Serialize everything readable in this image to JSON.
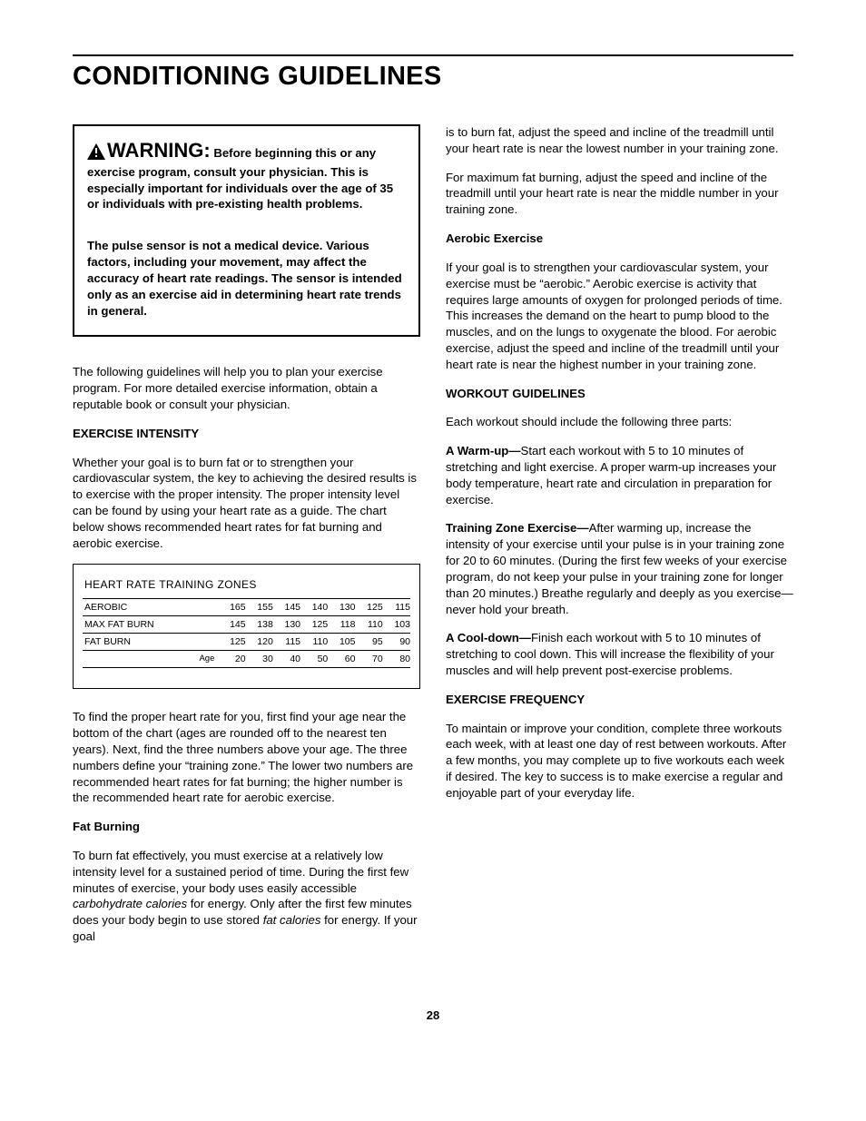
{
  "page": {
    "title": "CONDITIONING GUIDELINES",
    "number": "28"
  },
  "warning": {
    "head": "WARNING:",
    "body1_lead": " Before beginning this or any exercise program, consult your physician. This is especially important for individuals over the age of 35 or individuals with pre-existing health problems.",
    "body2": "The pulse sensor is not a medical device. Various factors, including your movement, may affect the accuracy of heart rate readings. The sensor is intended only as an exercise aid in determining heart rate trends in general."
  },
  "left": {
    "intro": "The following guidelines will help you to plan your exercise program. For more detailed exercise information, obtain a reputable book or consult your physician.",
    "h_intensity": "EXERCISE INTENSITY",
    "p_intensity": "Whether your goal is to burn fat or to strengthen your cardiovascular system, the key to achieving the desired results is to exercise with the proper intensity. The proper intensity level can be found by using your heart rate as a guide. The chart below shows recommended heart rates for fat burning and aerobic exercise.",
    "p_find": "To find the proper heart rate for you, first find your age near the bottom of the chart (ages are rounded off to the nearest ten years). Next, find the three numbers above your age. The three numbers define your “training zone.” The lower two numbers are recommended heart rates for fat burning; the higher number is the recommended heart rate for aerobic exercise.",
    "h_fat": "Fat Burning",
    "p_fat_a": "To burn fat effectively, you must exercise at a relatively low intensity level for a sustained period of time. During the first few minutes of exercise, your body uses easily accessible ",
    "i_carb": "carbohydrate calories",
    "p_fat_b": " for energy. Only after the first few minutes does your body begin to use stored ",
    "i_fatcal": "fat calories",
    "p_fat_c": " for energy. If your goal"
  },
  "chart": {
    "title": "HEART RATE TRAINING ZONES",
    "rows": [
      {
        "label": "AEROBIC",
        "v": [
          165,
          155,
          145,
          140,
          130,
          125,
          115
        ]
      },
      {
        "label": "MAX FAT BURN",
        "v": [
          145,
          138,
          130,
          125,
          118,
          110,
          103
        ]
      },
      {
        "label": "FAT BURN",
        "v": [
          125,
          120,
          115,
          110,
          105,
          95,
          90
        ]
      }
    ],
    "age_label": "Age",
    "ages": [
      20,
      30,
      40,
      50,
      60,
      70,
      80
    ]
  },
  "right": {
    "p_cont": "is to burn fat, adjust the speed and incline of the treadmill until your heart rate is near the lowest number in your training zone.",
    "p_maxfat": "For maximum fat burning, adjust the speed and incline of the treadmill until your heart rate is near the middle number in your training zone.",
    "h_aerobic": "Aerobic Exercise",
    "p_aerobic": "If your goal is to strengthen your cardiovascular system, your exercise must be “aerobic.” Aerobic exercise is activity that requires large amounts of oxygen for prolonged periods of time. This increases the demand on the heart to pump blood to the muscles, and on the lungs to oxygenate the blood. For aerobic exercise, adjust the speed and incline of the treadmill until your heart rate is near the highest number in your training zone.",
    "h_workout": "WORKOUT GUIDELINES",
    "p_parts": "Each workout should include the following three parts:",
    "b_warm": "A Warm-up—",
    "p_warm": "Start each workout with 5 to 10 minutes of stretching and light exercise. A proper warm-up increases your body temperature, heart rate and circulation in preparation for exercise.",
    "b_train": "Training Zone Exercise—",
    "p_train": "After warming up, increase the intensity of your exercise until your pulse is in your training zone for 20 to 60 minutes. (During the first few weeks of your exercise program, do not keep your pulse in your training zone for longer than 20 minutes.) Breathe regularly and deeply as you exercise—never hold your breath.",
    "b_cool": "A Cool-down—",
    "p_cool": "Finish each workout with 5 to 10 minutes of stretching to cool down. This will increase the flexibility of your muscles and will help prevent post-exercise problems.",
    "h_freq": "EXERCISE FREQUENCY",
    "p_freq": "To maintain or improve your condition, complete three workouts each week, with at least one day of rest between workouts. After a few months, you may complete up to five workouts each week if desired. The key to success is to make exercise a regular and enjoyable part of your everyday life."
  }
}
